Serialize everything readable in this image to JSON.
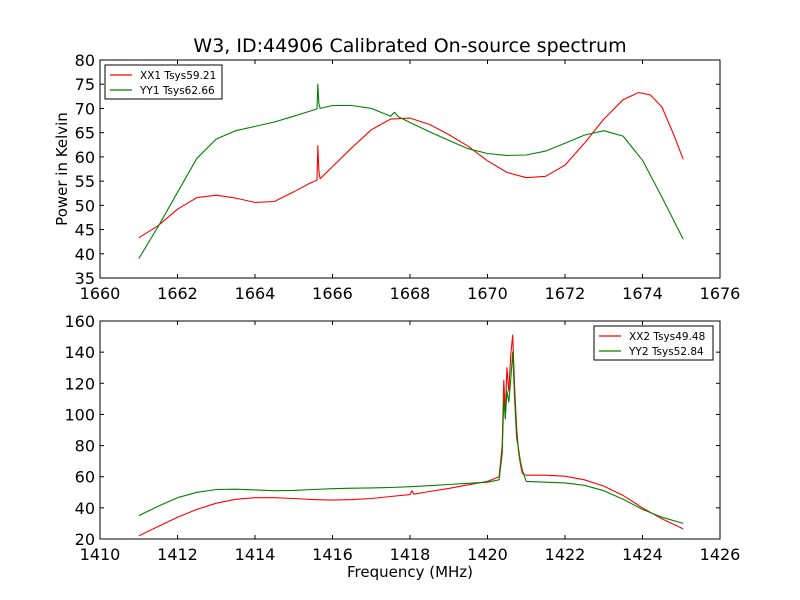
{
  "title": "W3, ID:44906 Calibrated On-source spectrum",
  "chart_data": [
    {
      "type": "line",
      "title": "W3, ID:44906 Calibrated On-source spectrum",
      "xlabel": "",
      "ylabel": "Power in Kelvin",
      "xlim": [
        1660,
        1676
      ],
      "ylim": [
        35,
        80
      ],
      "xticks": [
        1660,
        1662,
        1664,
        1666,
        1668,
        1670,
        1672,
        1674,
        1676
      ],
      "yticks": [
        35,
        40,
        45,
        50,
        55,
        60,
        65,
        70,
        75,
        80
      ],
      "grid": false,
      "legend": "top-left",
      "colors": {
        "XX1": "#ff0000",
        "YY1": "#008000"
      },
      "series": [
        {
          "name": "XX1 Tsys59.21",
          "color": "#ff0000",
          "x": [
            1661.0,
            1661.5,
            1662.0,
            1662.5,
            1663.0,
            1663.5,
            1664.0,
            1664.5,
            1665.0,
            1665.4,
            1665.6,
            1665.62,
            1665.65,
            1665.68,
            1665.72,
            1666.0,
            1666.5,
            1667.0,
            1667.5,
            1668.0,
            1668.5,
            1669.0,
            1669.5,
            1670.0,
            1670.5,
            1671.0,
            1671.5,
            1672.0,
            1672.5,
            1673.0,
            1673.5,
            1673.9,
            1674.2,
            1674.5,
            1674.8,
            1675.05
          ],
          "y": [
            43.3,
            45.8,
            49.2,
            51.6,
            52.1,
            51.5,
            50.6,
            50.8,
            52.8,
            54.5,
            55.2,
            62.3,
            57.0,
            55.5,
            55.8,
            58.0,
            61.9,
            65.6,
            67.8,
            68.0,
            66.7,
            64.6,
            62.2,
            59.2,
            56.8,
            55.7,
            56.0,
            58.3,
            62.8,
            67.8,
            71.8,
            73.3,
            72.8,
            70.3,
            64.7,
            59.5
          ]
        },
        {
          "name": "YY1 Tsys62.66",
          "color": "#008000",
          "x": [
            1661.0,
            1661.5,
            1662.0,
            1662.5,
            1663.0,
            1663.5,
            1664.0,
            1664.5,
            1665.0,
            1665.4,
            1665.6,
            1665.62,
            1665.65,
            1665.68,
            1665.72,
            1666.0,
            1666.5,
            1667.0,
            1667.5,
            1667.6,
            1667.7,
            1668.0,
            1668.5,
            1669.0,
            1669.5,
            1670.0,
            1670.5,
            1671.0,
            1671.5,
            1672.0,
            1672.5,
            1673.0,
            1673.5,
            1674.0,
            1674.5,
            1675.05
          ],
          "y": [
            39.0,
            45.6,
            52.7,
            59.7,
            63.7,
            65.4,
            66.3,
            67.2,
            68.4,
            69.4,
            69.9,
            75.0,
            71.0,
            70.0,
            70.1,
            70.6,
            70.6,
            70.0,
            68.4,
            69.2,
            68.3,
            67.1,
            65.2,
            63.4,
            61.7,
            60.7,
            60.3,
            60.4,
            61.2,
            62.8,
            64.5,
            65.4,
            64.3,
            59.3,
            51.7,
            43.0
          ]
        }
      ]
    },
    {
      "type": "line",
      "title": "",
      "xlabel": "Frequency (MHz)",
      "ylabel": "",
      "xlim": [
        1410,
        1426
      ],
      "ylim": [
        20,
        160
      ],
      "xticks": [
        1410,
        1412,
        1414,
        1416,
        1418,
        1420,
        1422,
        1424,
        1426
      ],
      "yticks": [
        20,
        40,
        60,
        80,
        100,
        120,
        140,
        160
      ],
      "grid": false,
      "legend": "top-right",
      "colors": {
        "XX2": "#ff0000",
        "YY2": "#008000"
      },
      "series": [
        {
          "name": "XX2 Tsys49.48",
          "color": "#ff0000",
          "x": [
            1411.0,
            1411.5,
            1412.0,
            1412.5,
            1413.0,
            1413.5,
            1414.0,
            1414.5,
            1415.0,
            1415.5,
            1416.0,
            1416.5,
            1417.0,
            1417.5,
            1418.0,
            1418.05,
            1418.1,
            1418.5,
            1419.0,
            1419.5,
            1420.0,
            1420.3,
            1420.38,
            1420.42,
            1420.46,
            1420.5,
            1420.55,
            1420.6,
            1420.65,
            1420.7,
            1420.75,
            1420.8,
            1420.85,
            1420.9,
            1421.0,
            1421.5,
            1422.0,
            1422.5,
            1423.0,
            1423.5,
            1424.0,
            1424.5,
            1425.05
          ],
          "y": [
            22.0,
            28.0,
            34.0,
            39.0,
            43.0,
            45.5,
            46.5,
            46.5,
            46.0,
            45.3,
            45.0,
            45.3,
            46.0,
            47.3,
            48.5,
            51.0,
            48.8,
            50.5,
            52.5,
            54.8,
            57.0,
            60.0,
            80.0,
            122.0,
            100.0,
            130.0,
            115.0,
            138.0,
            151.0,
            118.0,
            92.0,
            76.0,
            68.0,
            62.0,
            61.0,
            61.0,
            60.3,
            58.0,
            54.0,
            48.0,
            40.0,
            33.0,
            26.5
          ]
        },
        {
          "name": "YY2 Tsys52.84",
          "color": "#008000",
          "x": [
            1411.0,
            1411.5,
            1412.0,
            1412.5,
            1413.0,
            1413.5,
            1414.0,
            1414.5,
            1415.0,
            1415.5,
            1416.0,
            1416.5,
            1417.0,
            1417.5,
            1418.0,
            1418.5,
            1419.0,
            1419.5,
            1420.0,
            1420.3,
            1420.38,
            1420.42,
            1420.46,
            1420.5,
            1420.55,
            1420.6,
            1420.65,
            1420.7,
            1420.75,
            1420.8,
            1420.85,
            1420.9,
            1421.0,
            1421.5,
            1422.0,
            1422.5,
            1423.0,
            1423.5,
            1424.0,
            1424.5,
            1425.05
          ],
          "y": [
            35.0,
            41.0,
            46.5,
            50.0,
            51.8,
            52.0,
            51.5,
            51.0,
            51.2,
            51.8,
            52.3,
            52.6,
            52.8,
            53.1,
            53.6,
            54.2,
            55.0,
            55.8,
            56.5,
            58.0,
            75.0,
            110.0,
            97.0,
            115.0,
            108.0,
            122.0,
            140.0,
            110.0,
            85.0,
            78.0,
            70.0,
            64.0,
            57.0,
            56.5,
            56.0,
            54.5,
            51.0,
            45.5,
            39.0,
            34.0,
            30.0
          ]
        }
      ]
    }
  ]
}
